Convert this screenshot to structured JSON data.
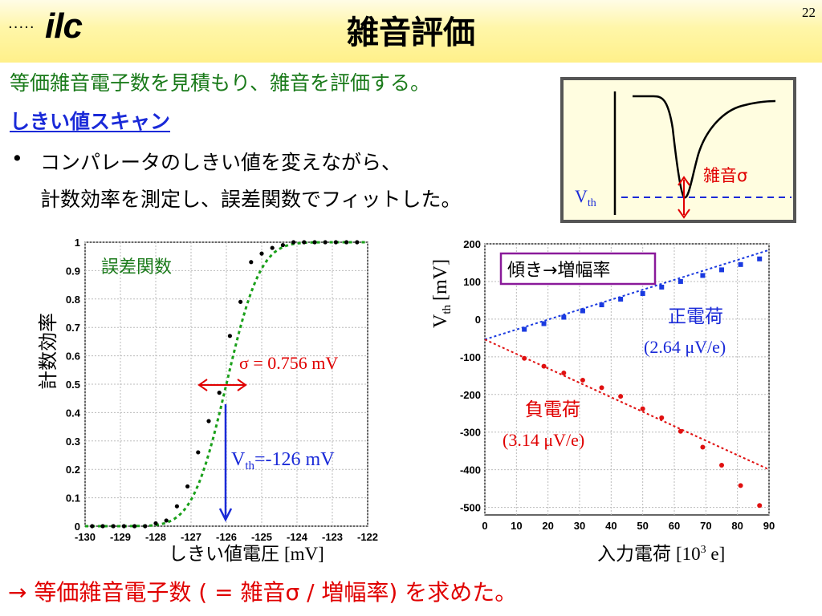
{
  "page_number": "22",
  "logo": {
    "dots": "·····",
    "text": "ilc"
  },
  "title": "雑音評価",
  "intro": "等価雑音電子数を見積もり、雑音を評価する。",
  "subheading": "しきい値スキャン",
  "bullet": {
    "symbol": "•",
    "line1": "コンパレータのしきい値を変えながら、",
    "line2": "計数効率を測定し、誤差関数でフィットした。"
  },
  "inset": {
    "vth_main": "V",
    "vth_sub": "th",
    "noise_label": "雑音σ"
  },
  "scurve": {
    "ylabel": "計数効率",
    "xlabel": "しきい値電圧",
    "xlabel_unit": "[mV]",
    "fit_label": "誤差関数",
    "sigma_label": "σ = 0.756 mV",
    "vth_main": "V",
    "vth_sub": "th",
    "vth_value": "=-126 mV"
  },
  "gain_chart": {
    "ylabel_main": "V",
    "ylabel_sub": "th",
    "ylabel_unit": "[mV]",
    "xlabel": "入力電荷",
    "xlabel_unit_pre": "[10",
    "xlabel_unit_sup": "3",
    "xlabel_unit_post": " e]",
    "slope_label": "傾き→増幅率",
    "pos_label": "正電荷",
    "pos_gain": "(2.64 μV/e)",
    "neg_label": "負電荷",
    "neg_gain": "(3.14 μV/e)"
  },
  "conclusion": "→ 等価雑音電子数 ( = 雑音σ / 増幅率) を求めた。",
  "colors": {
    "title_band": "#fff08a",
    "intro": "#1a7a1a",
    "subheading": "#1a2ad8",
    "annotation_red": "#e00000",
    "annotation_blue": "#1a2ad8",
    "fit_green": "#1aa01a",
    "positive_blue": "#1a3ae0",
    "negative_red": "#e01010",
    "slope_box": "#8a1a9a"
  },
  "chart_data": [
    {
      "type": "scatter",
      "title": "",
      "xlabel": "しきい値電圧 [mV]",
      "ylabel": "計数効率",
      "xlim": [
        -130,
        -122
      ],
      "ylim": [
        0,
        1
      ],
      "grid": true,
      "x_ticks": [
        "-130",
        "-129",
        "-128",
        "-127",
        "-126",
        "-125",
        "-124",
        "-123",
        "-122"
      ],
      "y_ticks": [
        "0",
        "0.1",
        "0.2",
        "0.3",
        "0.4",
        "0.5",
        "0.6",
        "0.7",
        "0.8",
        "0.9",
        "1"
      ],
      "series": [
        {
          "points": [
            [
              -129.8,
              0.0
            ],
            [
              -129.5,
              0.0
            ],
            [
              -129.2,
              0.0
            ],
            [
              -128.9,
              0.0
            ],
            [
              -128.6,
              0.0
            ],
            [
              -128.3,
              0.0
            ],
            [
              -128.0,
              0.01
            ],
            [
              -127.7,
              0.02
            ],
            [
              -127.4,
              0.07
            ],
            [
              -127.1,
              0.14
            ],
            [
              -126.8,
              0.26
            ],
            [
              -126.5,
              0.37
            ],
            [
              -126.2,
              0.47
            ],
            [
              -125.9,
              0.67
            ],
            [
              -125.6,
              0.79
            ],
            [
              -125.3,
              0.93
            ],
            [
              -125.0,
              0.96
            ],
            [
              -124.7,
              0.98
            ],
            [
              -124.4,
              0.99
            ],
            [
              -124.1,
              1.0
            ],
            [
              -123.8,
              1.0
            ],
            [
              -123.5,
              1.0
            ],
            [
              -123.2,
              1.0
            ],
            [
              -122.9,
              1.0
            ],
            [
              -122.6,
              1.0
            ],
            [
              -122.3,
              1.0
            ]
          ]
        }
      ],
      "fit": {
        "type": "error_function",
        "mean": -126.0,
        "sigma": 0.756
      }
    },
    {
      "type": "scatter",
      "title": "",
      "xlabel": "入力電荷 [10^3 e]",
      "ylabel": "Vth [mV]",
      "xlim": [
        0,
        90
      ],
      "ylim": [
        -520,
        200
      ],
      "grid": true,
      "x_ticks": [
        "0",
        "10",
        "20",
        "30",
        "40",
        "50",
        "60",
        "70",
        "80",
        "90"
      ],
      "y_ticks": [
        "200",
        "100",
        "0",
        "-100",
        "-200",
        "-300",
        "-400",
        "-500"
      ],
      "series": [
        {
          "name": "正電荷",
          "points": [
            [
              12.5,
              -27
            ],
            [
              18.7,
              -12
            ],
            [
              25,
              5
            ],
            [
              31,
              22
            ],
            [
              37,
              38
            ],
            [
              43,
              53
            ],
            [
              50,
              68
            ],
            [
              56,
              85
            ],
            [
              62,
              100
            ],
            [
              69,
              116
            ],
            [
              75,
              131
            ],
            [
              81,
              145
            ],
            [
              87,
              160
            ]
          ],
          "fit": {
            "slope": 2.64,
            "intercept": -54
          }
        },
        {
          "name": "負電荷",
          "points": [
            [
              12.5,
              -104
            ],
            [
              18.7,
              -125
            ],
            [
              25,
              -143
            ],
            [
              31,
              -162
            ],
            [
              37,
              -182
            ],
            [
              43,
              -205
            ],
            [
              50,
              -238
            ],
            [
              56,
              -262
            ],
            [
              62,
              -298
            ],
            [
              69,
              -340
            ],
            [
              75,
              -388
            ],
            [
              81,
              -442
            ],
            [
              87,
              -495
            ]
          ],
          "fit": {
            "slope": -3.14,
            "intercept": -54
          }
        }
      ]
    }
  ]
}
